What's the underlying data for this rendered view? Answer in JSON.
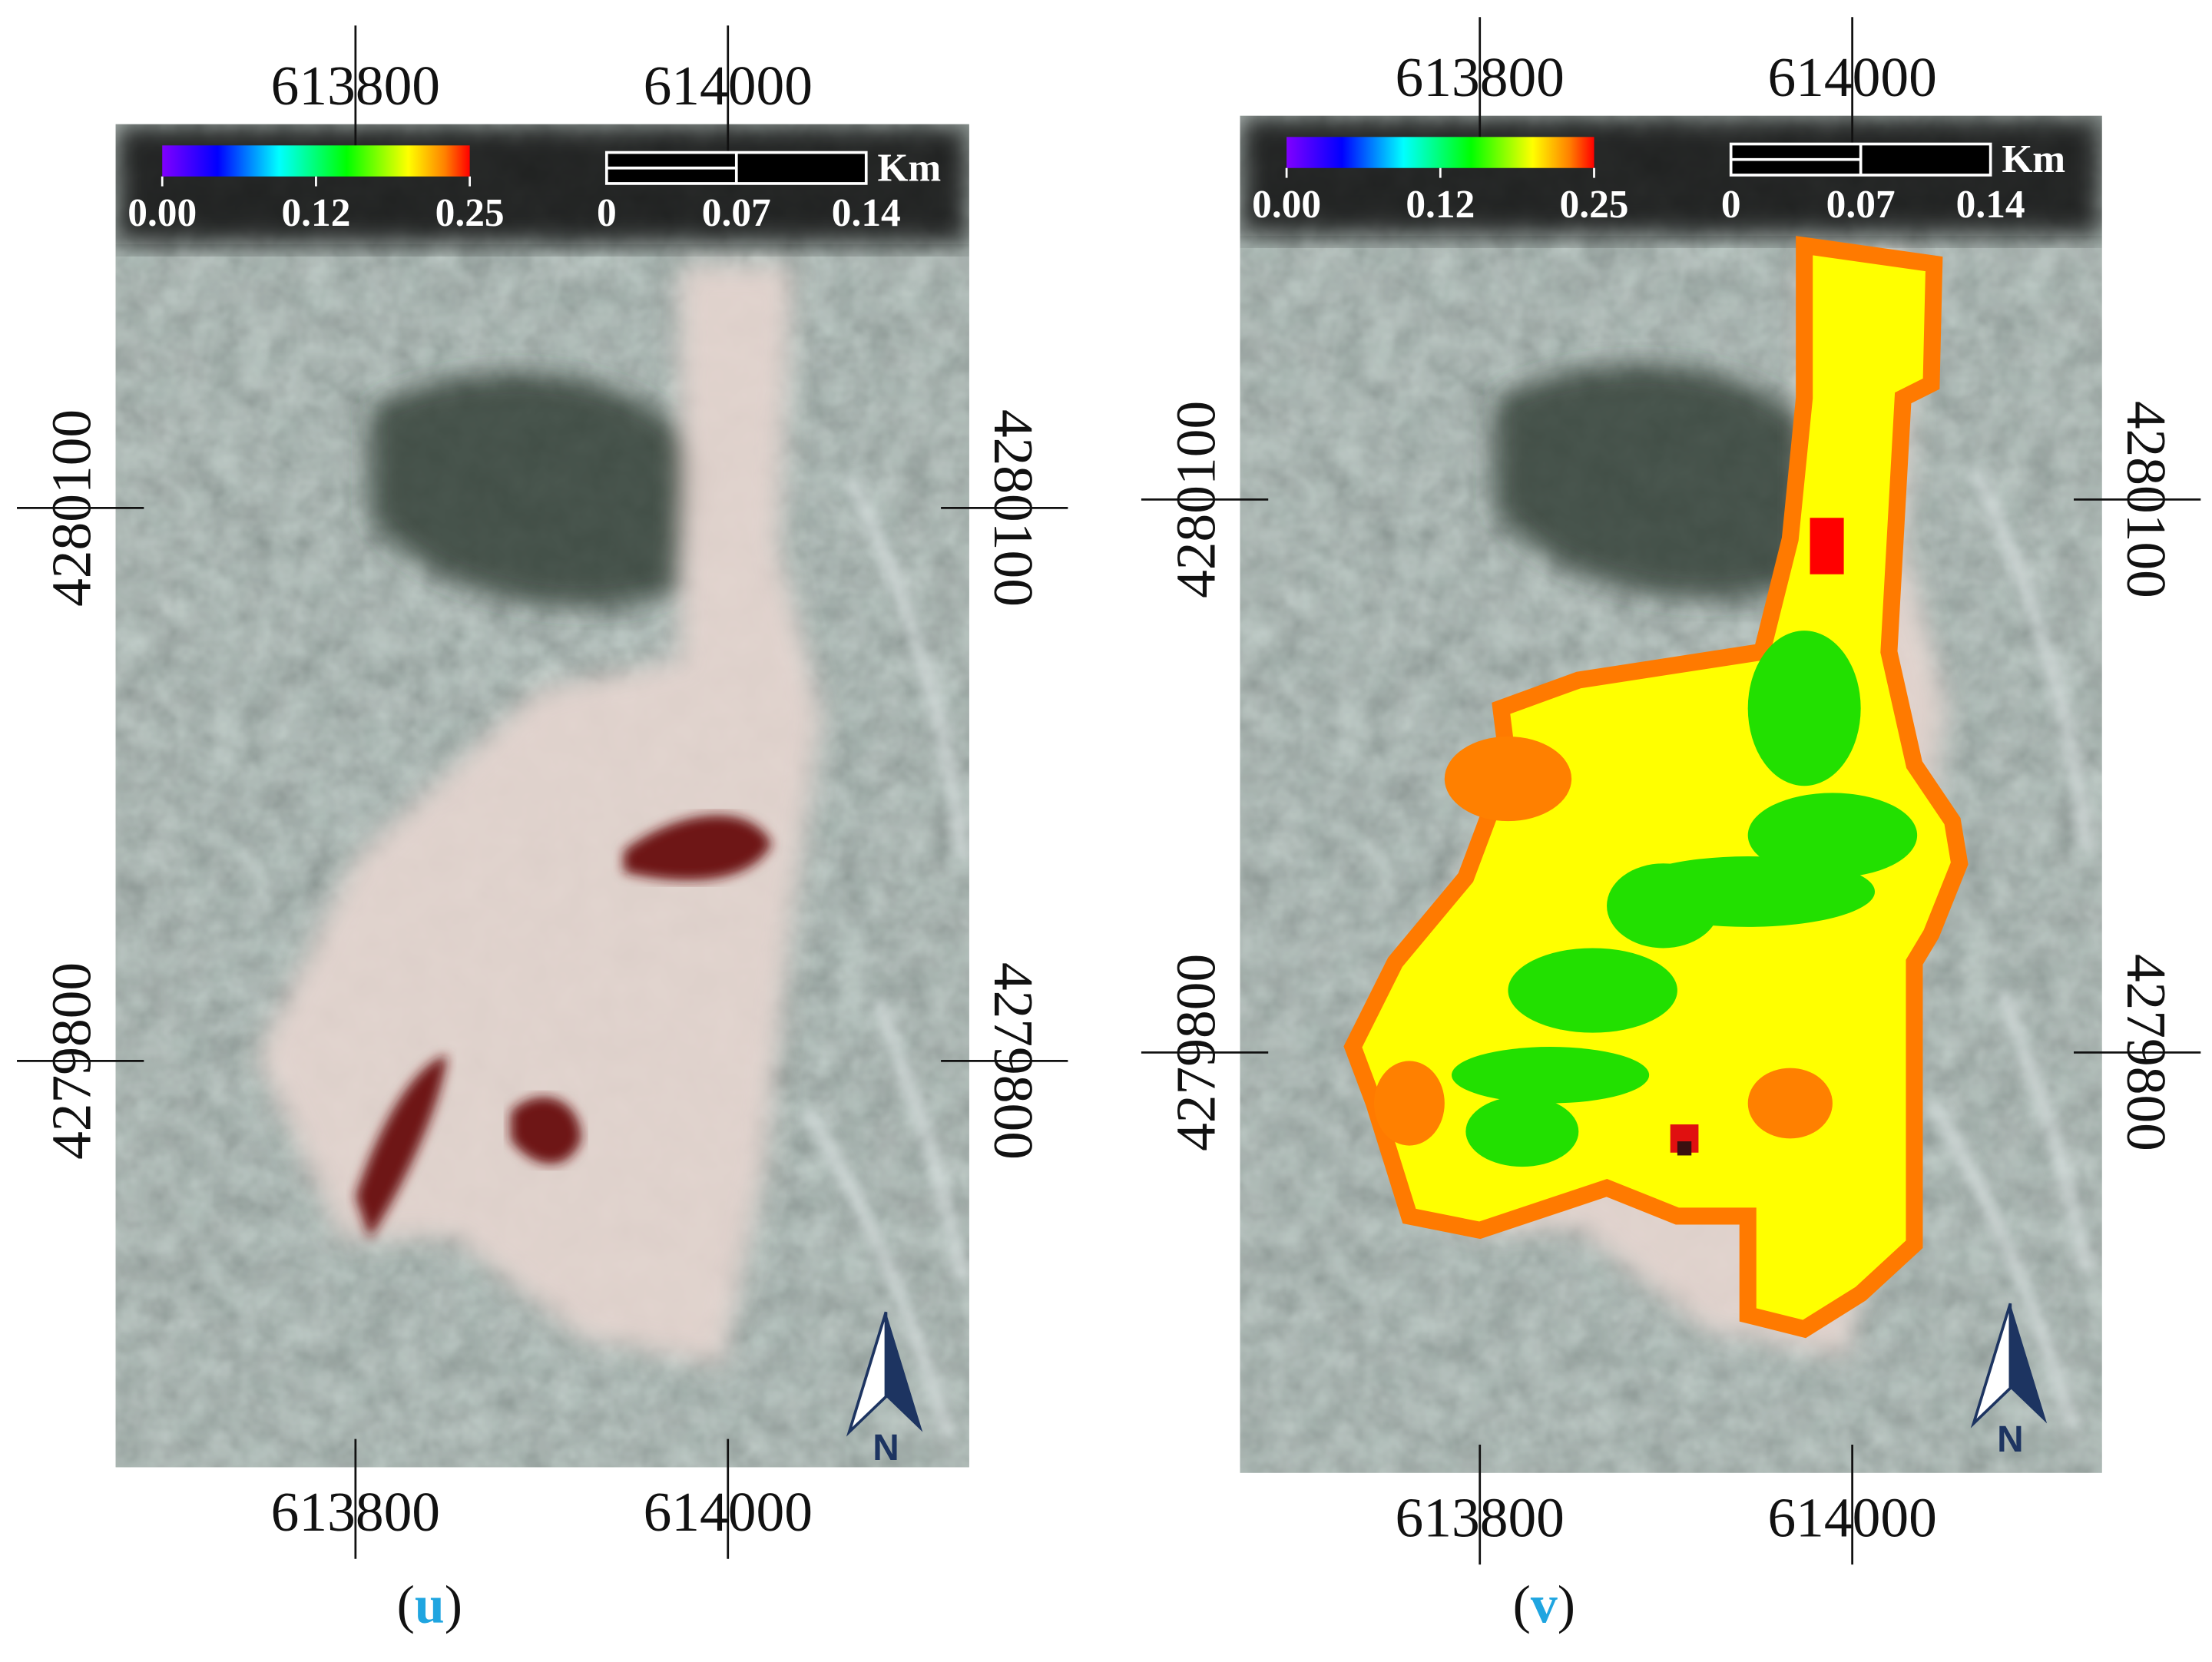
{
  "panels": [
    {
      "label": "(u)",
      "x_ticks": [
        "613800",
        "614000"
      ],
      "y_ticks": [
        "4280100",
        "4279800"
      ],
      "colorbar": [
        "0.00",
        "0.12",
        "0.25"
      ],
      "scale": [
        "0",
        "0.07",
        "0.14"
      ],
      "unit": "Km",
      "north": "N"
    },
    {
      "label": "(v)",
      "x_ticks": [
        "613800",
        "614000"
      ],
      "y_ticks": [
        "4280100",
        "4279800"
      ],
      "colorbar": [
        "0.00",
        "0.12",
        "0.25"
      ],
      "scale": [
        "0",
        "0.07",
        "0.14"
      ],
      "unit": "Km",
      "north": "N"
    }
  ]
}
